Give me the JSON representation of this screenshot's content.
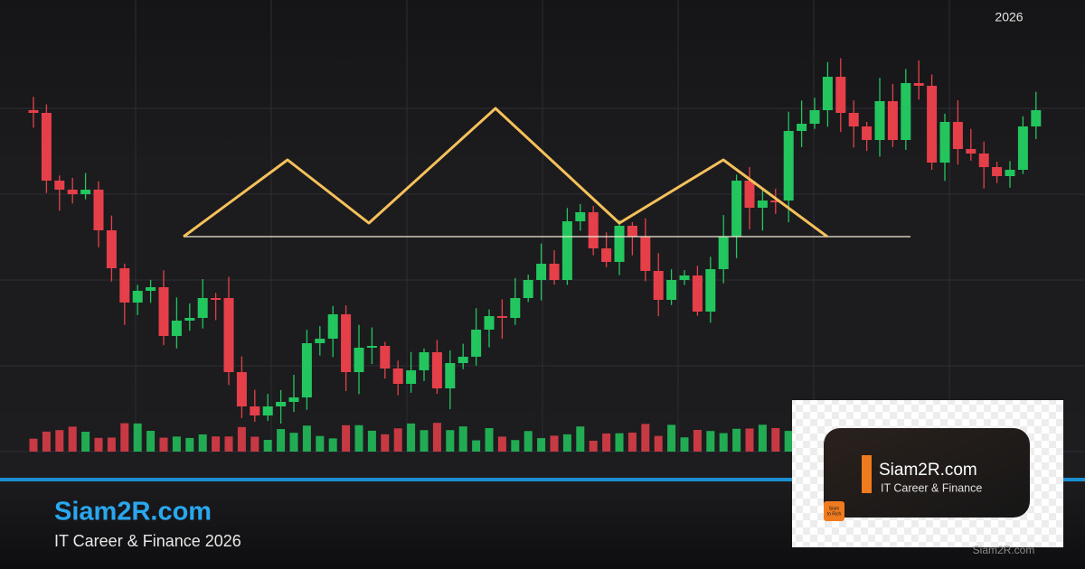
{
  "header": {
    "year": "2026"
  },
  "brand": {
    "title": "Siam2R.com",
    "subtitle": "IT Career & Finance 2026"
  },
  "logo": {
    "title": "Siam2R.com",
    "subtitle": "IT Career & Finance",
    "badge": [
      "Siam",
      "to Rich"
    ]
  },
  "watermark": "Siam2R.com"
}
